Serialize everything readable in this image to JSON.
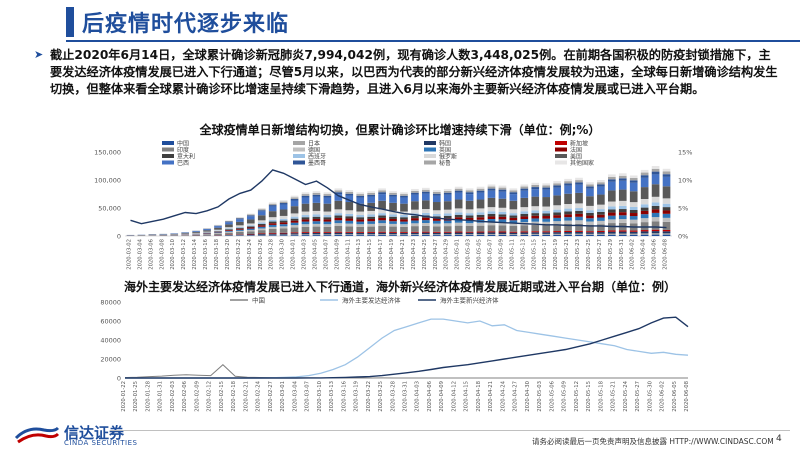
{
  "header": {
    "title": "后疫情时代逐步来临"
  },
  "summary": {
    "text": "截止2020年6月14日，全球累计确诊新冠肺炎7,994,042例，现有确诊人数3,448,025例。在前期各国积极的防疫封锁措施下，主要发达经济体疫情发展已进入下行通道；尽管5月以来，以巴西为代表的部分新兴经济体疫情发展较为迅速，全球每日新增确诊结构发生切换，但整体来看全球累计确诊环比增速呈持续下滑趋势，且进入6月以来海外主要新兴经济体疫情发展或已进入平台期。"
  },
  "footer": {
    "logo_cn": "信达证券",
    "logo_en": "CINDA SECURITIES",
    "disclaimer": "请务必阅读最后一页免责声明及信息披露  HTTP://WWW.CINDASC.COM",
    "page": "4"
  },
  "colors": {
    "brand": "#1f4e9c",
    "emerging": "#1f3864",
    "developed": "#9dc3e6",
    "china": "#808080"
  },
  "chart_data": [
    {
      "type": "bar",
      "title": "全球疫情单日新增结构切换，但累计确诊环比增速持续下滑（单位：例;%）",
      "left_axis": {
        "ylim": [
          0,
          150000
        ],
        "ticks": [
          "0",
          "50,000",
          "100,000",
          "150,000"
        ]
      },
      "right_axis": {
        "ylim": [
          0,
          15
        ],
        "ticks": [
          "0%",
          "5%",
          "10%",
          "15%"
        ]
      },
      "legend": [
        "中国",
        "日本",
        "韩国",
        "新加坡",
        "印度",
        "德国",
        "英国",
        "法国",
        "意大利",
        "西班牙",
        "俄罗斯",
        "美国",
        "巴西",
        "墨西哥",
        "秘鲁",
        "其他国家"
      ],
      "legend_colors": [
        "#1f4e9c",
        "#a5a5a5",
        "#203864",
        "#c00000",
        "#7f7f7f",
        "#bfbfbf",
        "#2e75b6",
        "#8b0000",
        "#404040",
        "#9dc3e6",
        "#d9d9d9",
        "#595959",
        "#4472c4",
        "#2f5597",
        "#a6a6a6",
        "#e7e6e6"
      ],
      "x_labels": [
        "2020-03-02",
        "2020-03-04",
        "2020-03-06",
        "2020-03-08",
        "2020-03-10",
        "2020-03-12",
        "2020-03-14",
        "2020-03-16",
        "2020-03-18",
        "2020-03-20",
        "2020-03-22",
        "2020-03-24",
        "2020-03-26",
        "2020-03-28",
        "2020-03-30",
        "2020-04-01",
        "2020-04-03",
        "2020-04-05",
        "2020-04-07",
        "2020-04-09",
        "2020-04-11",
        "2020-04-13",
        "2020-04-15",
        "2020-04-17",
        "2020-04-19",
        "2020-04-21",
        "2020-04-23",
        "2020-04-25",
        "2020-04-27",
        "2020-04-29",
        "2020-05-01",
        "2020-05-03",
        "2020-05-05",
        "2020-05-07",
        "2020-05-09",
        "2020-05-11",
        "2020-05-13",
        "2020-05-15",
        "2020-05-17",
        "2020-05-19",
        "2020-05-21",
        "2020-05-23",
        "2020-05-25",
        "2020-05-27",
        "2020-05-29",
        "2020-05-31",
        "2020-06-02",
        "2020-06-04",
        "2020-06-06",
        "2020-06-08"
      ],
      "daily_total": [
        2000,
        2500,
        3500,
        4000,
        5000,
        7000,
        10000,
        14000,
        20000,
        28000,
        34000,
        40000,
        50000,
        60000,
        64000,
        72000,
        78000,
        80000,
        78000,
        85000,
        82000,
        78000,
        80000,
        85000,
        80000,
        78000,
        84000,
        86000,
        82000,
        84000,
        88000,
        85000,
        88000,
        92000,
        90000,
        85000,
        92000,
        95000,
        94000,
        98000,
        102000,
        104000,
        96000,
        100000,
        110000,
        112000,
        108000,
        118000,
        125000,
        120000
      ],
      "growth_rate_pct": [
        2.8,
        2.2,
        2.6,
        3.0,
        3.6,
        4.2,
        4.0,
        4.5,
        5.2,
        6.6,
        7.6,
        8.2,
        9.8,
        11.8,
        11.2,
        10.2,
        9.2,
        9.8,
        8.6,
        7.2,
        6.4,
        5.6,
        5.2,
        4.8,
        4.4,
        4.0,
        3.8,
        3.5,
        3.2,
        3.0,
        2.9,
        2.8,
        2.6,
        2.5,
        2.4,
        2.3,
        2.2,
        2.1,
        2.0,
        2.0,
        1.9,
        1.9,
        1.8,
        1.8,
        1.7,
        1.7,
        1.6,
        1.6,
        1.6,
        1.5
      ]
    },
    {
      "type": "line",
      "title": "海外主要发达经济体疫情发展已进入下行通道，海外新兴经济体疫情发展近期或进入平台期（单位：例）",
      "ylim": [
        0,
        80000
      ],
      "y_ticks": [
        "0",
        "20000",
        "40000",
        "60000",
        "80000"
      ],
      "x_labels": [
        "2020-01-22",
        "2020-01-25",
        "2020-01-28",
        "2020-01-31",
        "2020-02-03",
        "2020-02-06",
        "2020-02-09",
        "2020-02-12",
        "2020-02-15",
        "2020-02-18",
        "2020-02-21",
        "2020-02-24",
        "2020-02-27",
        "2020-03-01",
        "2020-03-04",
        "2020-03-07",
        "2020-03-10",
        "2020-03-13",
        "2020-03-16",
        "2020-03-19",
        "2020-03-22",
        "2020-03-25",
        "2020-03-28",
        "2020-03-31",
        "2020-04-03",
        "2020-04-06",
        "2020-04-09",
        "2020-04-12",
        "2020-04-15",
        "2020-04-18",
        "2020-04-21",
        "2020-04-24",
        "2020-04-27",
        "2020-04-30",
        "2020-05-03",
        "2020-05-06",
        "2020-05-09",
        "2020-05-12",
        "2020-05-15",
        "2020-05-18",
        "2020-05-21",
        "2020-05-24",
        "2020-05-27",
        "2020-05-30",
        "2020-06-02",
        "2020-06-05",
        "2020-06-08"
      ],
      "series": [
        {
          "name": "中国",
          "values": [
            500,
            700,
            1500,
            2000,
            3000,
            3500,
            3000,
            2500,
            14000,
            1800,
            800,
            500,
            400,
            300,
            150,
            100,
            50,
            30,
            20,
            40,
            50,
            60,
            50,
            40,
            30,
            30,
            20,
            40,
            40,
            30,
            20,
            20,
            20,
            10,
            10,
            10,
            10,
            10,
            10,
            10,
            10,
            10,
            10,
            10,
            10,
            10,
            10
          ]
        },
        {
          "name": "海外主要发达经济体",
          "values": [
            0,
            0,
            0,
            0,
            0,
            0,
            0,
            0,
            0,
            0,
            10,
            50,
            200,
            600,
            1200,
            2500,
            5000,
            9000,
            14000,
            22000,
            32000,
            42000,
            50000,
            54000,
            58000,
            62000,
            62000,
            60000,
            58000,
            60000,
            55000,
            56000,
            50000,
            48000,
            46000,
            44000,
            42000,
            40000,
            38000,
            36000,
            34000,
            30000,
            28000,
            26000,
            27000,
            25000,
            24000
          ]
        },
        {
          "name": "海外主要新兴经济体",
          "values": [
            0,
            0,
            0,
            0,
            0,
            0,
            0,
            0,
            0,
            0,
            0,
            0,
            0,
            10,
            30,
            80,
            150,
            300,
            600,
            1000,
            1500,
            2500,
            4000,
            5500,
            7000,
            9000,
            11000,
            12500,
            14000,
            16000,
            18000,
            20000,
            22000,
            24000,
            26000,
            28000,
            30000,
            33000,
            36000,
            40000,
            44000,
            48000,
            52000,
            58000,
            63000,
            64000,
            54000
          ]
        }
      ]
    }
  ]
}
